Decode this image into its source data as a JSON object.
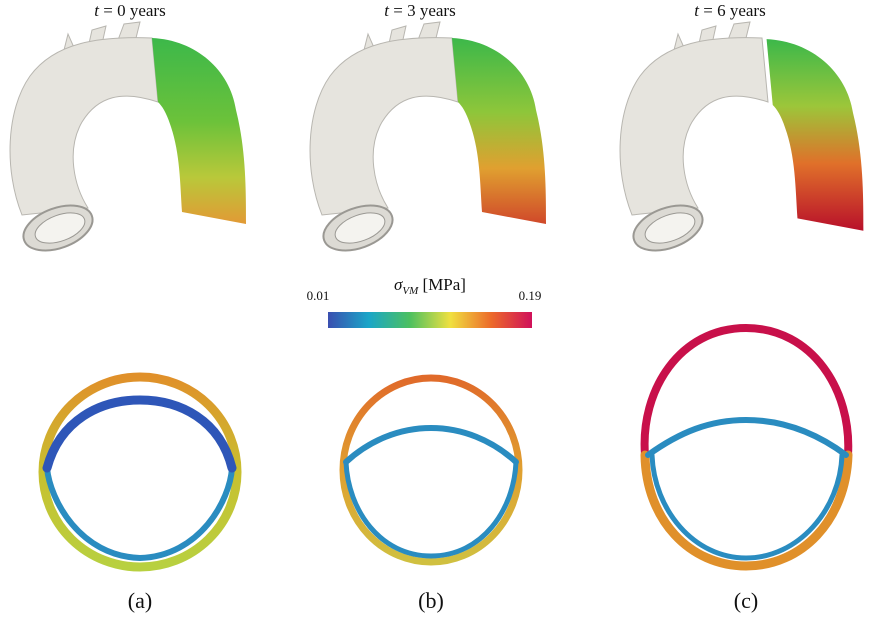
{
  "panels": [
    {
      "title_var": "t",
      "title_rest": " = 0 years",
      "label": "(a)"
    },
    {
      "title_var": "t",
      "title_rest": " = 3 years",
      "label": "(b)"
    },
    {
      "title_var": "t",
      "title_rest": " = 6 years",
      "label": "(c)"
    }
  ],
  "colorbar": {
    "symbol": "σ",
    "subscript": "VM",
    "unit": " [MPa]",
    "min": 0.01,
    "max": 0.19
  }
}
